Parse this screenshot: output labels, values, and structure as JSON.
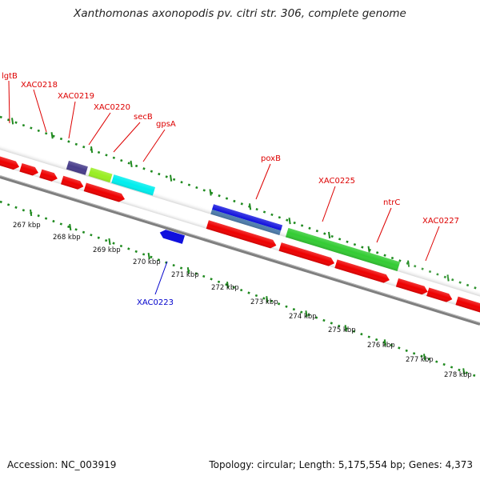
{
  "title": "Xanthomonas axonopodis pv. citri str. 306, complete genome",
  "footer": {
    "accession": "Accession: NC_003919",
    "summary": "Topology: circular; Length: 5,175,554 bp; Genes: 4,373"
  },
  "colors": {
    "backbone": "#7f7f7f",
    "tick_dots": "#1f8a1f",
    "gene_label": "#dd0000",
    "gene_label_alt": "#0000cc",
    "cds_red": "#ee0000",
    "gene_olive": "#6b8e23",
    "gene_slate": "#483d8b",
    "gene_lime": "#99ee22",
    "gene_cyan": "#00eeee",
    "gene_blue": "#1010dd",
    "gene_steel": "#4f7fb0",
    "gene_green": "#33cc33"
  },
  "kbp_labels": [
    "267 kbp",
    "268 kbp",
    "269 kbp",
    "270 kbp",
    "271 kbp",
    "272 kbp",
    "273 kbp",
    "274 kbp",
    "275 kbp",
    "276 kbp",
    "277 kbp",
    "278 kbp"
  ],
  "gene_labels": [
    {
      "text": "lgtB",
      "color": "red"
    },
    {
      "text": "XAC0218",
      "color": "red"
    },
    {
      "text": "XAC0219",
      "color": "red"
    },
    {
      "text": "XAC0220",
      "color": "red"
    },
    {
      "text": "secB",
      "color": "red"
    },
    {
      "text": "gpsA",
      "color": "red"
    },
    {
      "text": "poxB",
      "color": "red"
    },
    {
      "text": "XAC0225",
      "color": "red"
    },
    {
      "text": "ntrC",
      "color": "red"
    },
    {
      "text": "XAC0227",
      "color": "red"
    },
    {
      "text": "XAC0223",
      "color": "blue"
    }
  ]
}
